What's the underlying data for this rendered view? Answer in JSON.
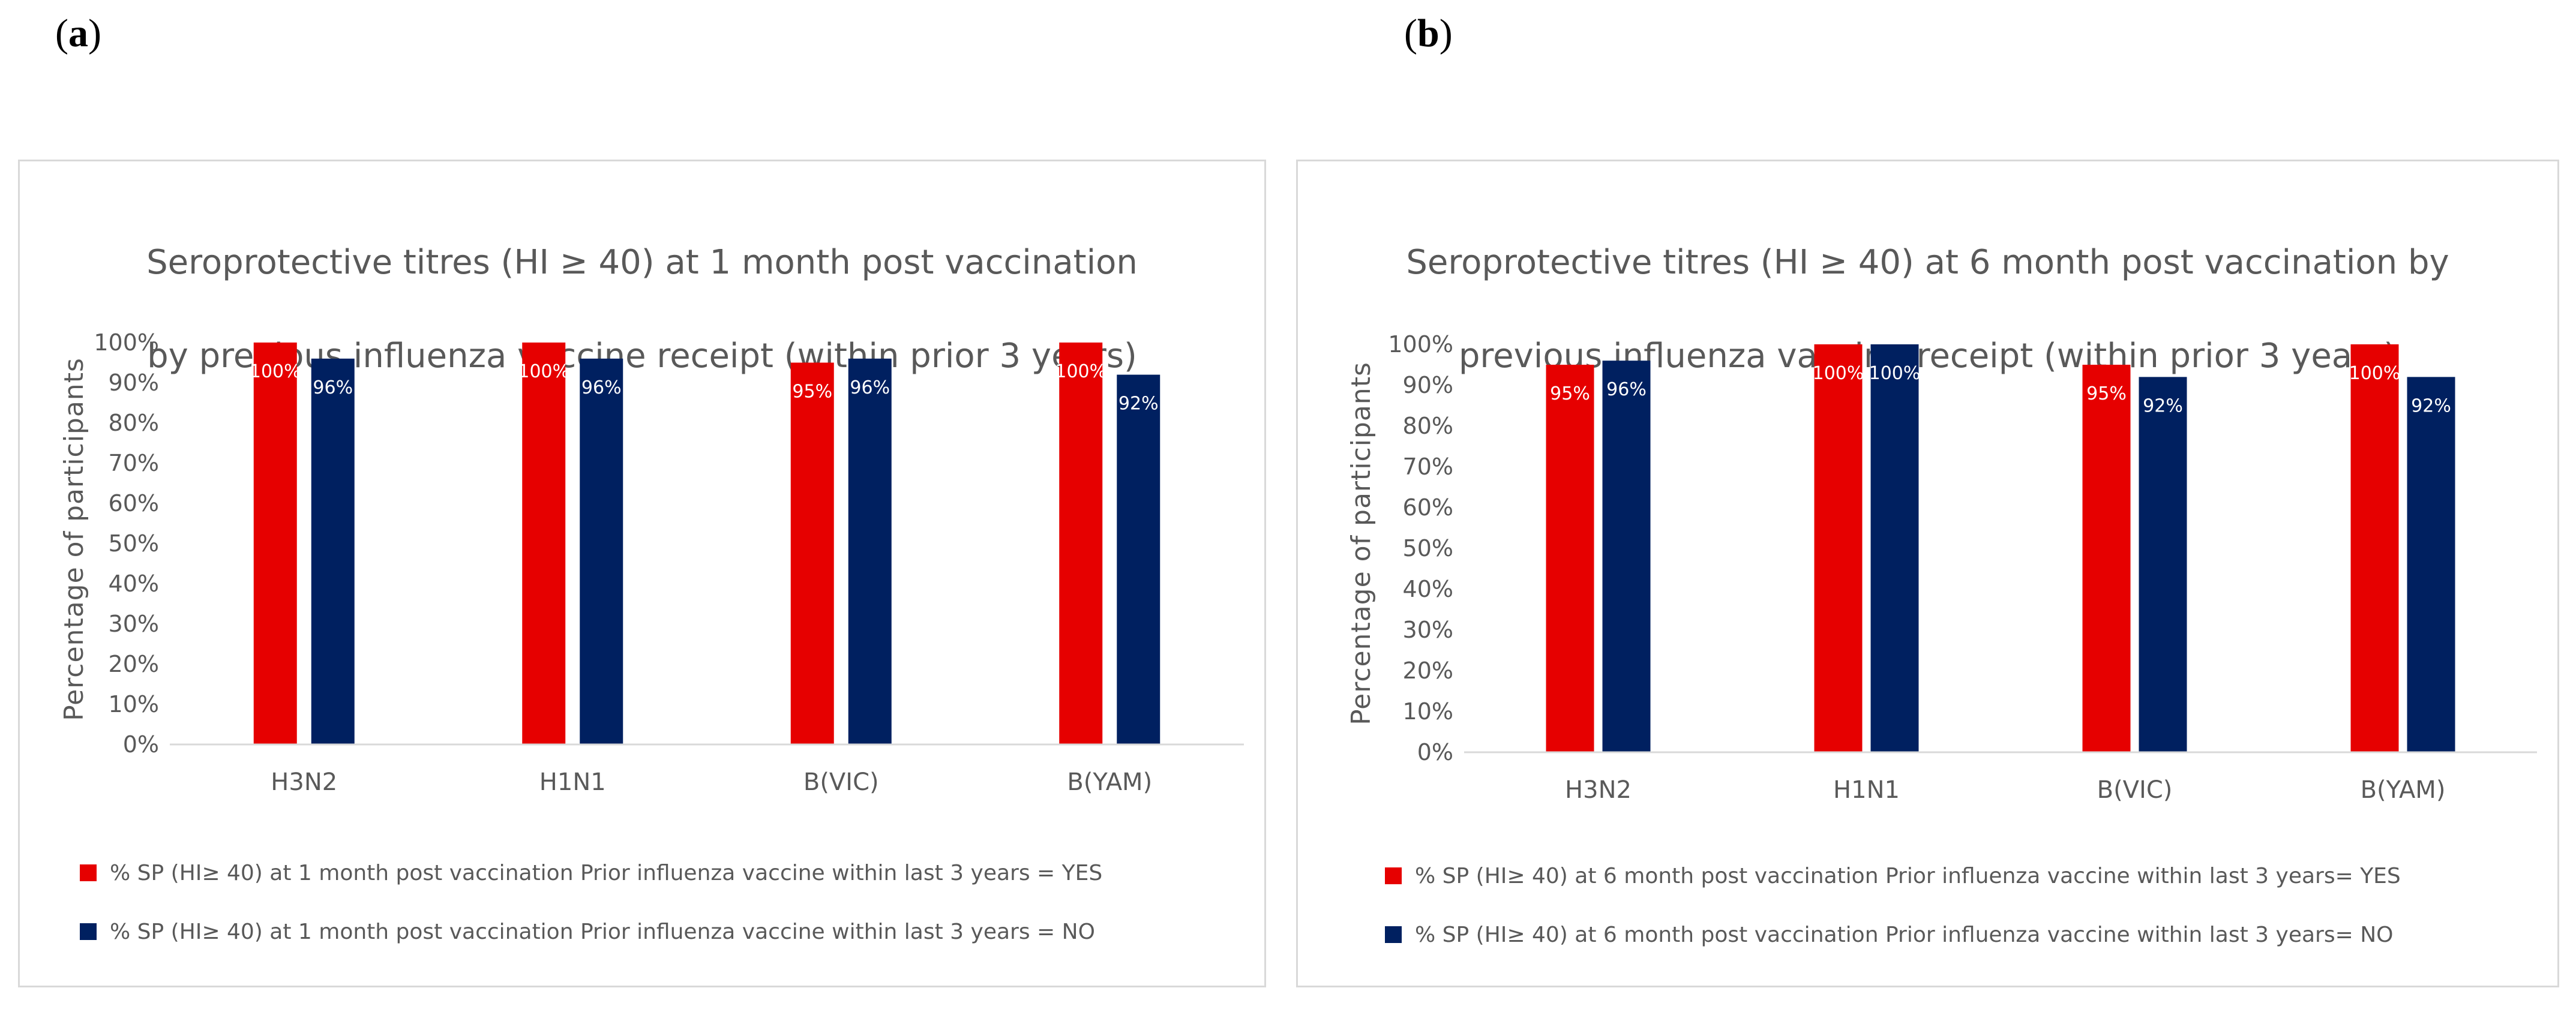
{
  "panel_labels": {
    "a": "a",
    "b": "b"
  },
  "colors": {
    "yes": "#E60000",
    "no": "#002060",
    "axis": "#d9d9d9",
    "text": "#595959"
  },
  "chart_data": [
    {
      "type": "bar",
      "title_lines": [
        "Seroprotective titres (HI ≥ 40) at 1 month post vaccination",
        "by previous influenza vaccine receipt (within prior 3 years)"
      ],
      "ylabel": "Percentage of participants",
      "xlabel": "",
      "categories": [
        "H3N2",
        "H1N1",
        "B(VIC)",
        "B(YAM)"
      ],
      "yticks": [
        "0%",
        "10%",
        "20%",
        "30%",
        "40%",
        "50%",
        "60%",
        "70%",
        "80%",
        "90%",
        "100%"
      ],
      "ylim": [
        0,
        100
      ],
      "grid": false,
      "series": [
        {
          "name": "% SP (HI≥ 40) at 1 month post vaccination Prior influenza vaccine within last 3 years = YES",
          "values": [
            100,
            100,
            95,
            100
          ],
          "labels": [
            "100%",
            "100%",
            "95%",
            "100%"
          ],
          "color": "#E60000"
        },
        {
          "name": "% SP (HI≥ 40) at 1 month post vaccination Prior influenza vaccine within last 3 years = NO",
          "values": [
            96,
            96,
            96,
            92
          ],
          "labels": [
            "96%",
            "96%",
            "96%",
            "92%"
          ],
          "color": "#002060"
        }
      ]
    },
    {
      "type": "bar",
      "title_lines": [
        "Seroprotective titres (HI ≥ 40) at 6 month post vaccination by",
        "previous influenza vaccine receipt (within prior 3 years)"
      ],
      "ylabel": "Percentage of participants",
      "xlabel": "",
      "categories": [
        "H3N2",
        "H1N1",
        "B(VIC)",
        "B(YAM)"
      ],
      "yticks": [
        "0%",
        "10%",
        "20%",
        "30%",
        "40%",
        "50%",
        "60%",
        "70%",
        "80%",
        "90%",
        "100%"
      ],
      "ylim": [
        0,
        100
      ],
      "grid": false,
      "series": [
        {
          "name": "% SP (HI≥ 40) at 6 month post vaccination Prior influenza vaccine within last 3 years= YES",
          "values": [
            95,
            100,
            95,
            100
          ],
          "labels": [
            "95%",
            "100%",
            "95%",
            "100%"
          ],
          "color": "#E60000"
        },
        {
          "name": "% SP (HI≥ 40) at 6 month post vaccination Prior influenza vaccine within last 3 years= NO",
          "values": [
            96,
            100,
            92,
            92
          ],
          "labels": [
            "96%",
            "100%",
            "92%",
            "92%"
          ],
          "color": "#002060"
        }
      ]
    }
  ]
}
